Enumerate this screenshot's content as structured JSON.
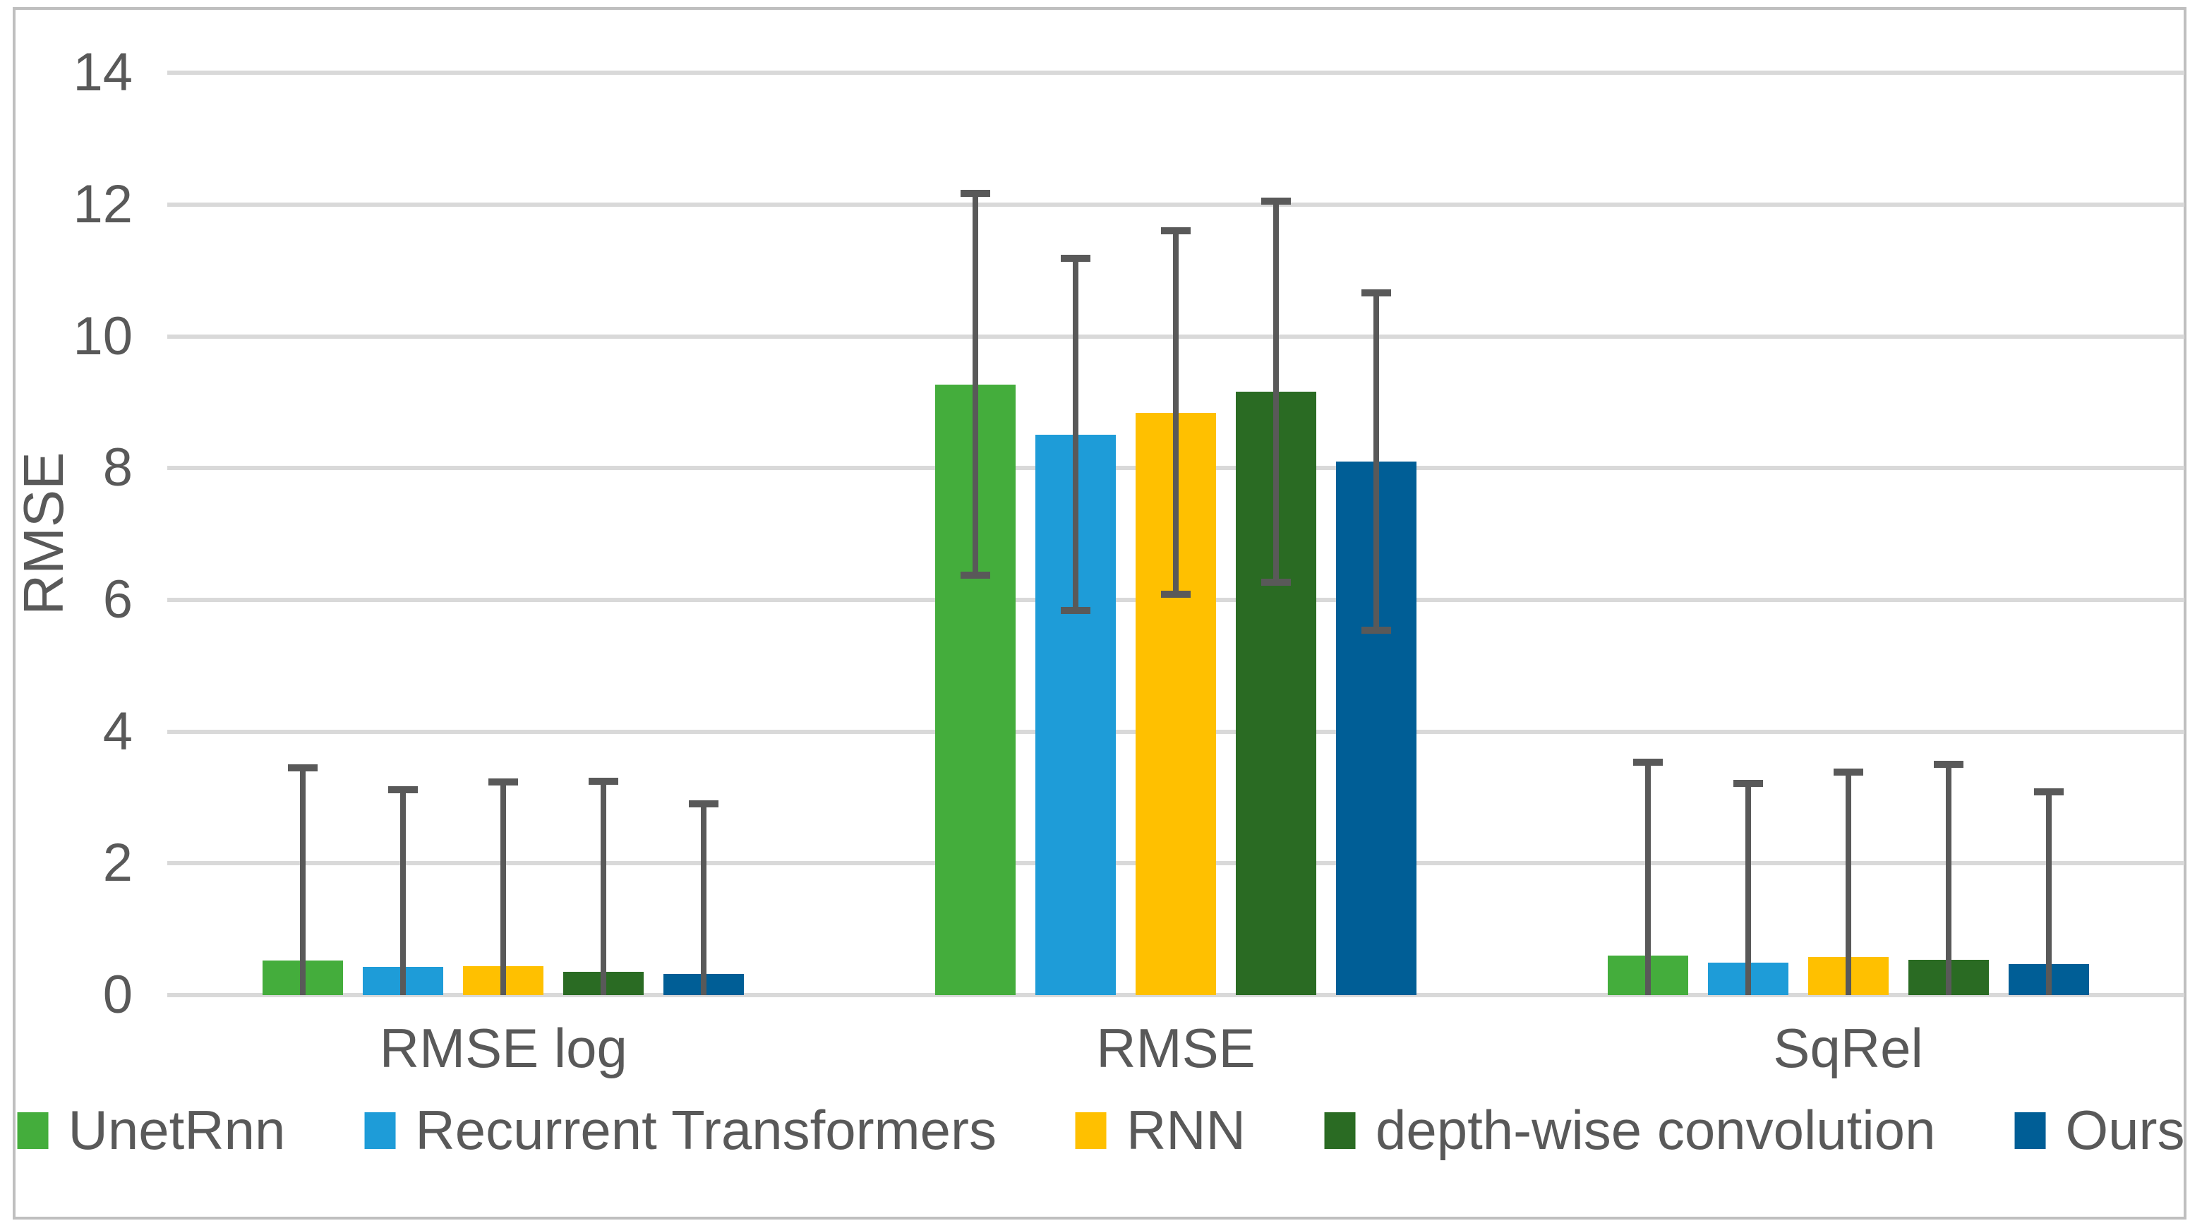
{
  "figure": {
    "background": "#FFFFFF",
    "border_color": "#BFBFBF"
  },
  "chart_data": {
    "type": "bar",
    "subtype": "grouped-vertical-with-error-bars",
    "title": "",
    "categories": [
      "RMSE log",
      "RMSE",
      "SqRel"
    ],
    "series": [
      {
        "name": "UnetRnn",
        "color": "#44AD3C",
        "values": [
          0.53,
          9.27,
          0.6
        ],
        "errors": [
          2.92,
          2.9,
          2.93
        ]
      },
      {
        "name": "Recurrent Transformers",
        "color": "#1E9CD8",
        "values": [
          0.43,
          8.51,
          0.49
        ],
        "errors": [
          2.69,
          2.67,
          2.72
        ]
      },
      {
        "name": "RNN",
        "color": "#FFC000",
        "values": [
          0.44,
          8.84,
          0.58
        ],
        "errors": [
          2.79,
          2.76,
          2.81
        ]
      },
      {
        "name": "depth-wise convolution",
        "color": "#2A6B23",
        "values": [
          0.35,
          9.16,
          0.54
        ],
        "errors": [
          2.9,
          2.89,
          2.96
        ]
      },
      {
        "name": "Ours",
        "color": "#005E96",
        "values": [
          0.32,
          8.1,
          0.47
        ],
        "errors": [
          2.58,
          2.56,
          2.62
        ]
      }
    ],
    "xlabel": "",
    "ylabel": "RMSE",
    "ylim": [
      0,
      14
    ],
    "ytick_step": 2,
    "yticks": [
      0,
      2,
      4,
      6,
      8,
      10,
      12,
      14
    ],
    "grid": true,
    "legend_position": "bottom",
    "error_bars": "symmetric, clipped at 0",
    "style": {
      "gridline_color": "#D9D9D9",
      "error_bar_color": "#595959",
      "text_color": "#595959"
    }
  }
}
